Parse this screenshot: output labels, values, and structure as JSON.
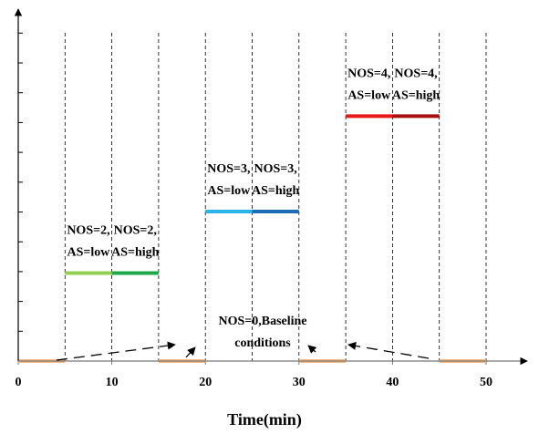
{
  "chart_data": {
    "type": "timeline",
    "x_label": "Time(min)",
    "xlim": [
      0,
      50
    ],
    "xticks": [
      0,
      10,
      20,
      30,
      40,
      50
    ],
    "ylim": [
      0,
      12
    ],
    "dashed_x": [
      5,
      10,
      15,
      20,
      25,
      30,
      35,
      40,
      45,
      50
    ],
    "segments": [
      {
        "start": 0,
        "end": 5,
        "level": 0,
        "color": "#f8b882"
      },
      {
        "start": 15,
        "end": 20,
        "level": 0,
        "color": "#f8b882"
      },
      {
        "start": 30,
        "end": 35,
        "level": 0,
        "color": "#f8b882"
      },
      {
        "start": 45,
        "end": 50,
        "level": 0,
        "color": "#f8b882"
      },
      {
        "start": 5,
        "end": 10,
        "level": 3,
        "color": "#92d050",
        "label": [
          "NOS=2,",
          "AS=low"
        ]
      },
      {
        "start": 10,
        "end": 15,
        "level": 3,
        "color": "#1fa84a",
        "label": [
          "NOS=2,",
          "AS=high"
        ]
      },
      {
        "start": 20,
        "end": 25,
        "level": 5.1,
        "color": "#2bb3ea",
        "label": [
          "NOS=3,",
          "AS=low"
        ]
      },
      {
        "start": 25,
        "end": 30,
        "level": 5.1,
        "color": "#1f6cb5",
        "label": [
          "NOS=3,",
          "AS=high"
        ]
      },
      {
        "start": 35,
        "end": 40,
        "level": 8.35,
        "color": "#e81818",
        "label": [
          "NOS=4,",
          "AS=low"
        ]
      },
      {
        "start": 40,
        "end": 45,
        "level": 8.35,
        "color": "#a80f0f",
        "label": [
          "NOS=4,",
          "AS=high"
        ]
      }
    ],
    "baseline_label": [
      "NOS=0,Baseline",
      "conditions"
    ]
  }
}
